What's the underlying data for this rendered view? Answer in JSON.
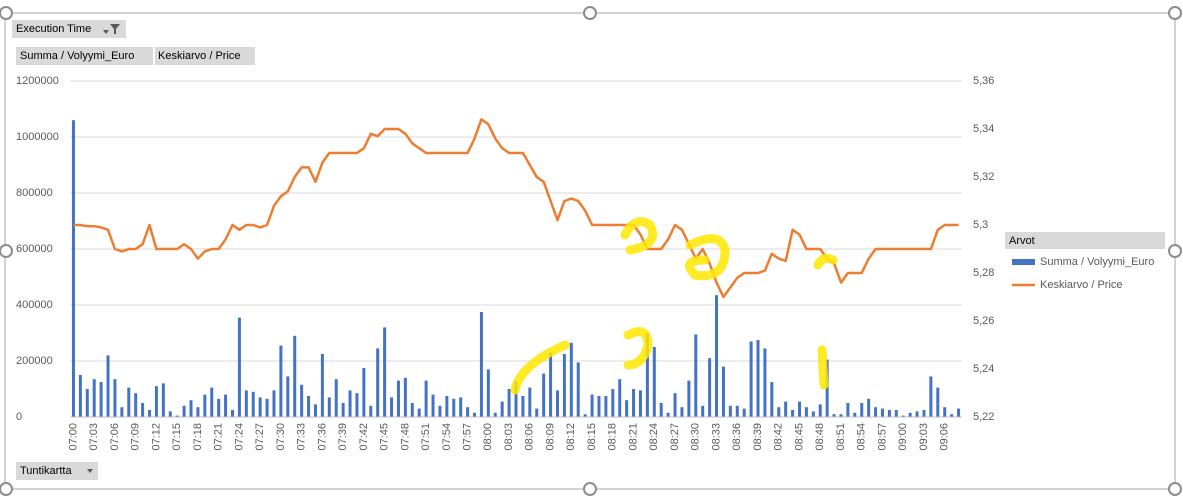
{
  "chart_data": {
    "type": "combo",
    "filter_button": "Execution Time",
    "axis_button": "Tuntikartta",
    "legend_title": "Arvot",
    "categories": [
      "07:00",
      null,
      null,
      "07:03",
      null,
      null,
      "07:06",
      null,
      null,
      "07:09",
      null,
      null,
      "07:12",
      null,
      null,
      "07:15",
      null,
      null,
      "07:18",
      null,
      null,
      "07:21",
      null,
      null,
      "07:24",
      null,
      null,
      "07:27",
      null,
      null,
      "07:30",
      null,
      null,
      "07:33",
      null,
      null,
      "07:36",
      null,
      null,
      "07:39",
      null,
      null,
      "07:42",
      null,
      null,
      "07:45",
      null,
      null,
      "07:48",
      null,
      null,
      "07:51",
      null,
      null,
      "07:54",
      null,
      null,
      "07:57",
      null,
      null,
      "08:00",
      null,
      null,
      "08:03",
      null,
      null,
      "08:06",
      null,
      null,
      "08:09",
      null,
      null,
      "08:12",
      null,
      null,
      "08:15",
      null,
      null,
      "08:18",
      null,
      null,
      "08:21",
      null,
      null,
      "08:24",
      null,
      null,
      "08:27",
      null,
      null,
      "08:30",
      null,
      null,
      "08:33",
      null,
      null,
      "08:36",
      null,
      null,
      "08:39",
      null,
      null,
      "08:42",
      null,
      null,
      "08:45",
      null,
      null,
      "08:48",
      null,
      null,
      "08:51",
      null,
      null,
      "08:54",
      null,
      null,
      "08:57",
      null,
      null,
      "09:00",
      null,
      null,
      "09:03",
      null,
      null,
      "09:06",
      null,
      null
    ],
    "series": [
      {
        "name": "Summa  / Volyymi_Euro",
        "type": "bar",
        "color": "#4472c4",
        "values": [
          1060000,
          150000,
          100000,
          135000,
          125000,
          220000,
          135000,
          35000,
          105000,
          85000,
          50000,
          25000,
          110000,
          120000,
          20000,
          5000,
          40000,
          60000,
          35000,
          80000,
          105000,
          65000,
          80000,
          25000,
          355000,
          95000,
          90000,
          70000,
          65000,
          95000,
          255000,
          145000,
          290000,
          115000,
          75000,
          45000,
          225000,
          70000,
          135000,
          50000,
          95000,
          85000,
          175000,
          40000,
          245000,
          320000,
          70000,
          130000,
          140000,
          50000,
          30000,
          130000,
          80000,
          40000,
          75000,
          65000,
          70000,
          35000,
          15000,
          375000,
          170000,
          15000,
          55000,
          100000,
          130000,
          75000,
          105000,
          30000,
          155000,
          230000,
          95000,
          225000,
          265000,
          195000,
          10000,
          80000,
          75000,
          75000,
          100000,
          135000,
          60000,
          100000,
          95000,
          300000,
          250000,
          50000,
          15000,
          85000,
          35000,
          130000,
          295000,
          40000,
          210000,
          435000,
          180000,
          40000,
          40000,
          30000,
          270000,
          275000,
          245000,
          125000,
          35000,
          55000,
          25000,
          55000,
          35000,
          20000,
          45000,
          205000,
          10000,
          10000,
          50000,
          15000,
          50000,
          65000,
          35000,
          30000,
          25000,
          25000,
          5000,
          15000,
          20000,
          25000,
          145000,
          105000,
          35000,
          10000,
          30000
        ]
      },
      {
        "name": "Keskiarvo  / Price",
        "type": "line",
        "axis": "y2",
        "color": "#ed7d31",
        "values": [
          5.3,
          5.3,
          5.2995,
          5.2995,
          5.299,
          5.298,
          5.29,
          5.289,
          5.29,
          5.29,
          5.292,
          5.3,
          5.29,
          5.29,
          5.29,
          5.29,
          5.292,
          5.29,
          5.286,
          5.289,
          5.29,
          5.29,
          5.294,
          5.3,
          5.298,
          5.3,
          5.3,
          5.299,
          5.3,
          5.308,
          5.312,
          5.314,
          5.32,
          5.324,
          5.324,
          5.318,
          5.326,
          5.33,
          5.33,
          5.33,
          5.33,
          5.33,
          5.332,
          5.338,
          5.337,
          5.34,
          5.34,
          5.34,
          5.338,
          5.334,
          5.332,
          5.33,
          5.33,
          5.33,
          5.33,
          5.33,
          5.33,
          5.33,
          5.336,
          5.344,
          5.342,
          5.336,
          5.332,
          5.33,
          5.33,
          5.33,
          5.325,
          5.32,
          5.318,
          5.31,
          5.302,
          5.31,
          5.311,
          5.31,
          5.306,
          5.3,
          5.3,
          5.3,
          5.3,
          5.3,
          5.3,
          5.3,
          5.296,
          5.29,
          5.29,
          5.29,
          5.294,
          5.3,
          5.298,
          5.292,
          5.286,
          5.29,
          5.284,
          5.276,
          5.27,
          5.274,
          5.278,
          5.28,
          5.28,
          5.28,
          5.281,
          5.288,
          5.286,
          5.285,
          5.298,
          5.296,
          5.29,
          5.29,
          5.29,
          5.286,
          5.284,
          5.276,
          5.28,
          5.28,
          5.28,
          5.286,
          5.29,
          5.29,
          5.29,
          5.29,
          5.29,
          5.29,
          5.29,
          5.29,
          5.29,
          5.298,
          5.3,
          5.3,
          5.3
        ]
      }
    ],
    "ylim": [
      0,
      1200000
    ],
    "yticks": [
      0,
      200000,
      400000,
      600000,
      800000,
      1000000,
      1200000
    ],
    "y2lim": [
      5.22,
      5.36
    ],
    "y2ticks": [
      {
        "value": 5.22,
        "label": "5,22"
      },
      {
        "value": 5.24,
        "label": "5,24"
      },
      {
        "value": 5.26,
        "label": "5,26"
      },
      {
        "value": 5.28,
        "label": "5,28"
      },
      {
        "value": 5.3,
        "label": "5,3"
      },
      {
        "value": 5.32,
        "label": "5,32"
      },
      {
        "value": 5.34,
        "label": "5,34"
      },
      {
        "value": 5.36,
        "label": "5,36"
      }
    ],
    "grid": true
  }
}
